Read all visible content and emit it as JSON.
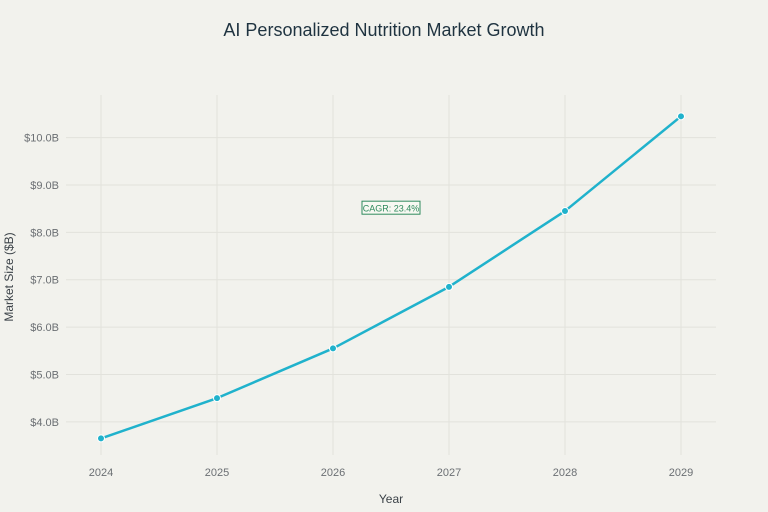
{
  "title": "AI Personalized Nutrition Market Growth",
  "colors": {
    "line": "#20b2cc",
    "annotation": "#2f8a5d",
    "grid": "#e2e2dc"
  },
  "chart_data": {
    "type": "line",
    "title": "AI Personalized Nutrition Market Growth",
    "xlabel": "Year",
    "ylabel": "Market Size ($B)",
    "x": [
      "2024",
      "2025",
      "2026",
      "2027",
      "2028",
      "2029"
    ],
    "series": [
      {
        "values": [
          3.65,
          4.5,
          5.55,
          6.85,
          8.45,
          10.45
        ]
      }
    ],
    "yticks": [
      4,
      5,
      6,
      7,
      8,
      9,
      10
    ],
    "ytick_labels": [
      "$4.0B",
      "$5.0B",
      "$6.0B",
      "$7.0B",
      "$8.0B",
      "$9.0B",
      "$10.0B"
    ],
    "ylim": [
      3.3,
      10.9
    ],
    "grid": true,
    "annotation": {
      "text": "CAGR: 23.4%",
      "x": "2026.5",
      "y": 8.5
    }
  }
}
